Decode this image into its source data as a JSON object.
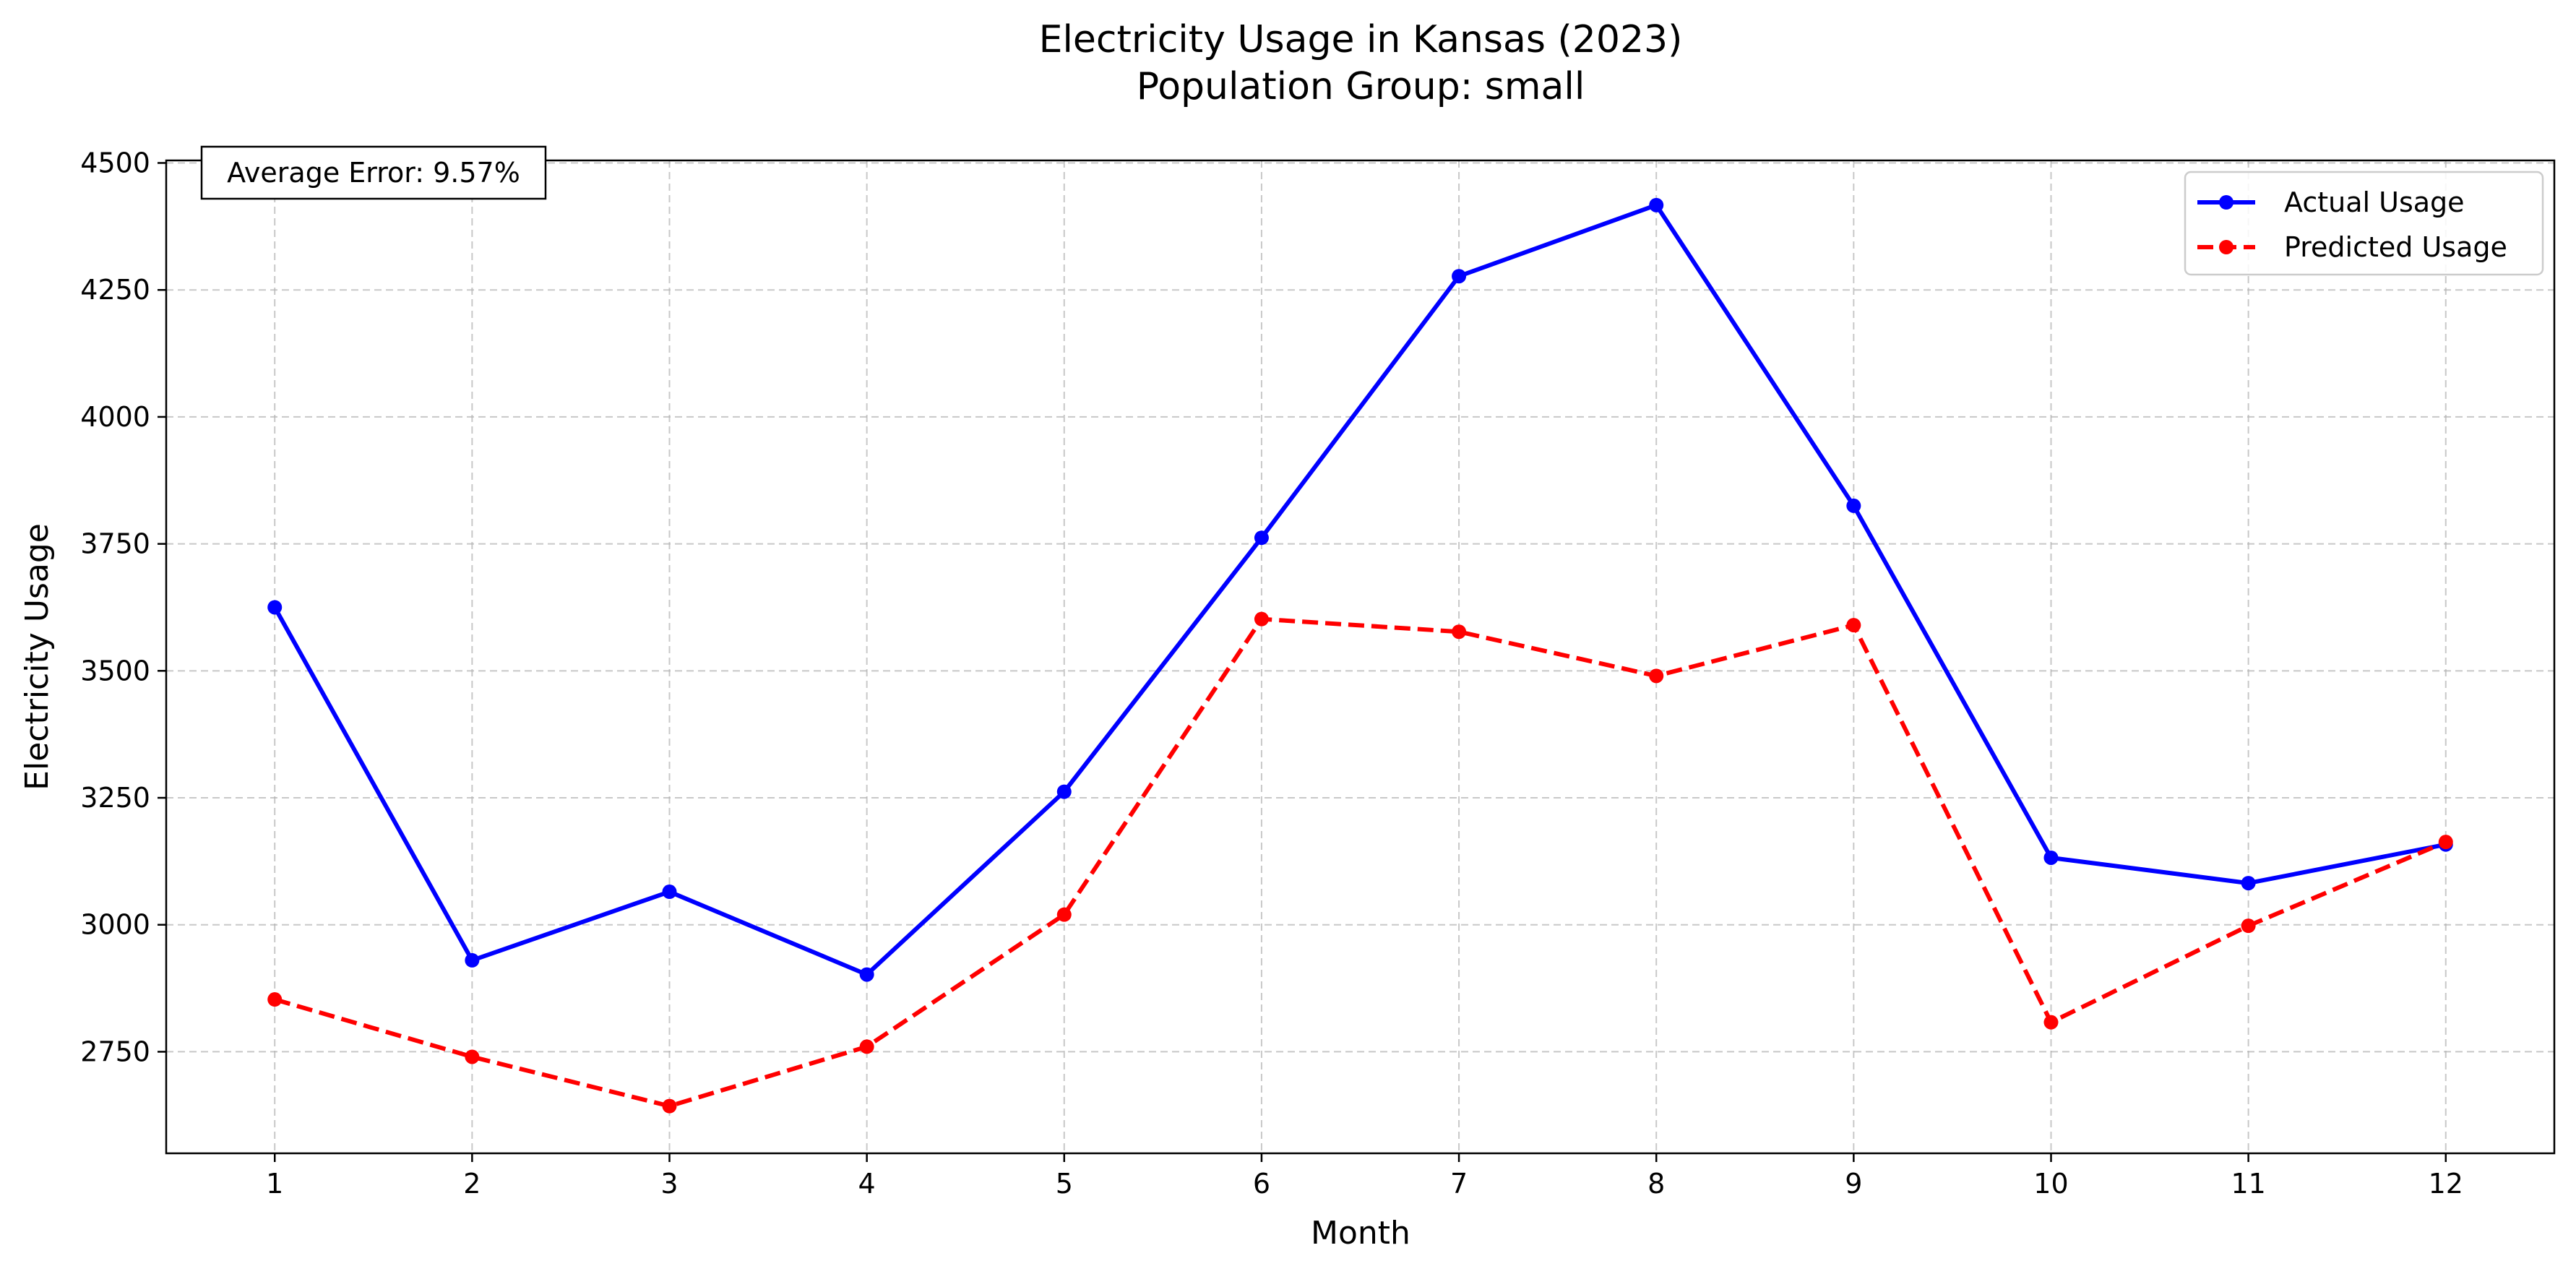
{
  "chart_data": {
    "type": "line",
    "title": "Electricity Usage in Kansas (2023)",
    "subtitle": "Population Group: small",
    "xlabel": "Month",
    "ylabel": "Electricity Usage",
    "x": [
      1,
      2,
      3,
      4,
      5,
      6,
      7,
      8,
      9,
      10,
      11,
      12
    ],
    "xlim": [
      0.45,
      12.55
    ],
    "ylim": [
      2550,
      4505
    ],
    "yticks": [
      2750,
      3000,
      3250,
      3500,
      3750,
      4000,
      4250,
      4500
    ],
    "grid": true,
    "legend_position": "top-right",
    "annotation": "Average Error: 9.57%",
    "series": [
      {
        "name": "Actual Usage",
        "color": "#0000ff",
        "line_style": "solid",
        "values": [
          3625,
          2930,
          3065,
          2902,
          3262,
          3762,
          4277,
          4417,
          3825,
          3132,
          3082,
          3158
        ]
      },
      {
        "name": "Predicted Usage",
        "color": "#ff0000",
        "line_style": "dashed",
        "values": [
          2853,
          2740,
          2643,
          2760,
          3020,
          3602,
          3577,
          3490,
          3590,
          2808,
          2998,
          3163
        ]
      }
    ]
  }
}
